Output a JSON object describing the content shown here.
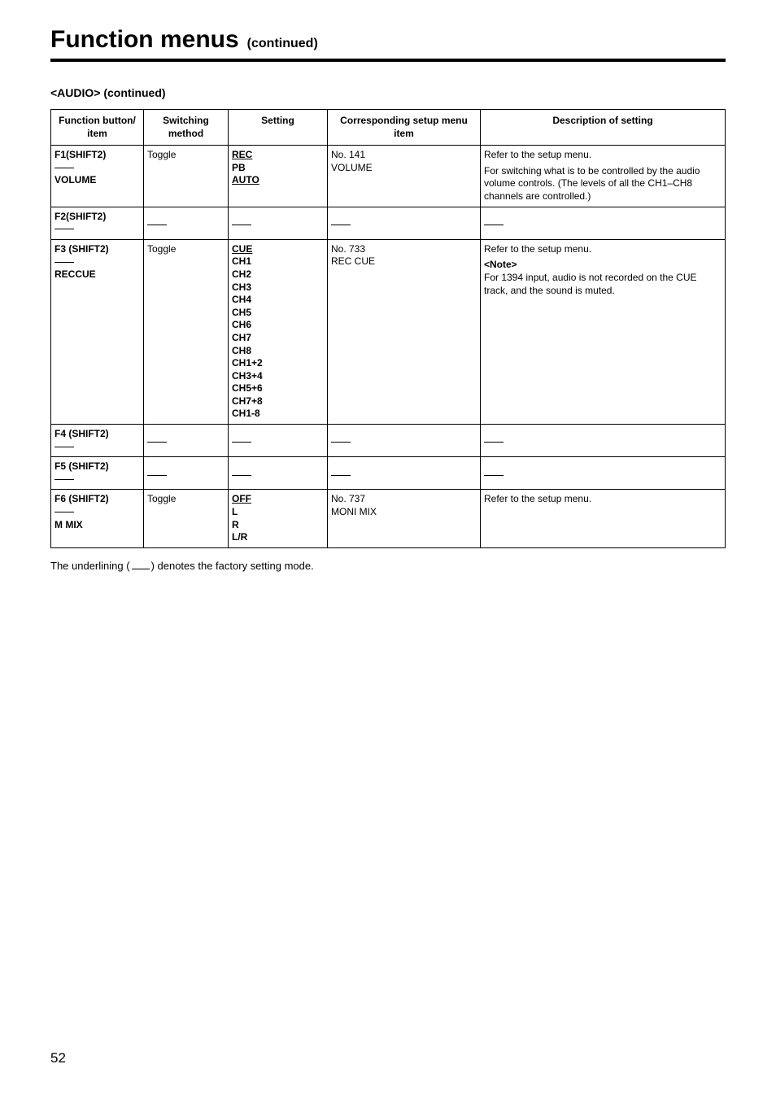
{
  "title": {
    "main": "Function menus",
    "sub": "(continued)"
  },
  "section": "<AUDIO> (continued)",
  "table": {
    "headers": [
      "Function button/\nitem",
      "Switching\nmethod",
      "Setting",
      "Corresponding setup menu\nitem",
      "Description of setting"
    ],
    "rows": [
      {
        "button_top": "F1(SHIFT2)",
        "button_item": "VOLUME",
        "method": "Toggle",
        "settings": [
          {
            "text": "REC",
            "default": true
          },
          {
            "text": "PB",
            "default": false
          },
          {
            "text": "AUTO",
            "default": true
          }
        ],
        "menu": "No. 141\nVOLUME",
        "desc": "Refer to the setup menu.\nFor switching what is to be controlled by the audio volume controls. (The levels of all the CH1–CH8 channels are controlled.)"
      },
      {
        "button_top": "F2(SHIFT2)",
        "button_item": "",
        "method": "__DASH__",
        "settings": "__DASH__",
        "menu": "__DASH__",
        "desc": "__DASH__"
      },
      {
        "button_top": "F3 (SHIFT2)",
        "button_item": "RECCUE",
        "method": "Toggle",
        "settings": [
          {
            "text": "CUE",
            "default": true
          },
          {
            "text": "CH1",
            "default": false
          },
          {
            "text": "CH2",
            "default": false
          },
          {
            "text": "CH3",
            "default": false
          },
          {
            "text": "CH4",
            "default": false
          },
          {
            "text": "CH5",
            "default": false
          },
          {
            "text": "CH6",
            "default": false
          },
          {
            "text": "CH7",
            "default": false
          },
          {
            "text": "CH8",
            "default": false
          },
          {
            "text": "CH1+2",
            "default": false
          },
          {
            "text": "CH3+4",
            "default": false
          },
          {
            "text": "CH5+6",
            "default": false
          },
          {
            "text": "CH7+8",
            "default": false
          },
          {
            "text": "CH1-8",
            "default": false
          }
        ],
        "menu": "No. 733\nREC CUE",
        "desc": "Refer to the setup menu.\n<Note>\nFor 1394 input, audio is not recorded on the CUE track, and the sound is muted."
      },
      {
        "button_top": "F4 (SHIFT2)",
        "button_item": "",
        "method": "__DASH__",
        "settings": "__DASH__",
        "menu": "__DASH__",
        "desc": "__DASH__"
      },
      {
        "button_top": "F5 (SHIFT2)",
        "button_item": "",
        "method": "__DASH__",
        "settings": "__DASH__",
        "menu": "__DASH__",
        "desc": "__DASH__"
      },
      {
        "button_top": "F6 (SHIFT2)",
        "button_item": "M MIX",
        "method": "Toggle",
        "settings": [
          {
            "text": "OFF",
            "default": true
          },
          {
            "text": "L",
            "default": false
          },
          {
            "text": "R",
            "default": false
          },
          {
            "text": "L/R",
            "default": false
          }
        ],
        "menu": "No. 737\nMONI MIX",
        "desc": "Refer to the setup menu."
      }
    ]
  },
  "footnote_before": "The underlining (",
  "footnote_after": ") denotes the factory setting mode.",
  "page_number": "52"
}
